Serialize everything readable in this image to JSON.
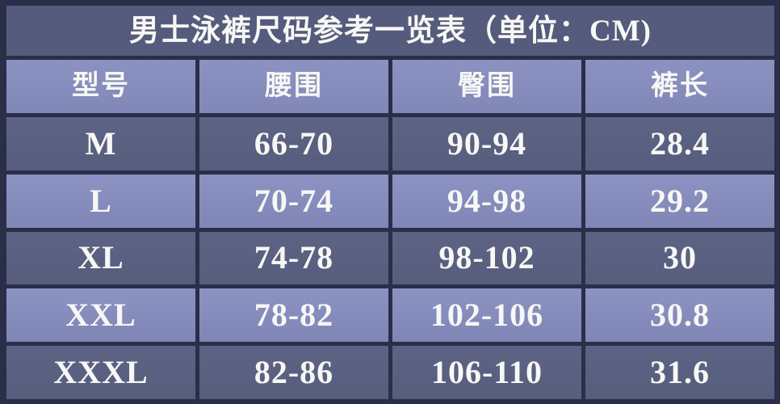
{
  "chart_data": {
    "type": "table",
    "title": "男士泳裤尺码参考一览表（单位：CM)",
    "unit": "CM",
    "columns": [
      "型号",
      "腰围",
      "臀围",
      "裤长"
    ],
    "rows": [
      [
        "M",
        "66-70",
        "90-94",
        "28.4"
      ],
      [
        "L",
        "70-74",
        "94-98",
        "29.2"
      ],
      [
        "XL",
        "74-78",
        "98-102",
        "30"
      ],
      [
        "XXL",
        "78-82",
        "102-106",
        "30.8"
      ],
      [
        "XXXL",
        "82-86",
        "106-110",
        "31.6"
      ]
    ],
    "layout_hints": {
      "grid": "on",
      "grid_color": "#2a2e49",
      "title_bg": "#555b7c",
      "header_bg": "#868dbd",
      "odd_row_bg": "#5a6081",
      "even_row_bg": "#868dbd",
      "text_color": "#f7f7f4"
    }
  }
}
